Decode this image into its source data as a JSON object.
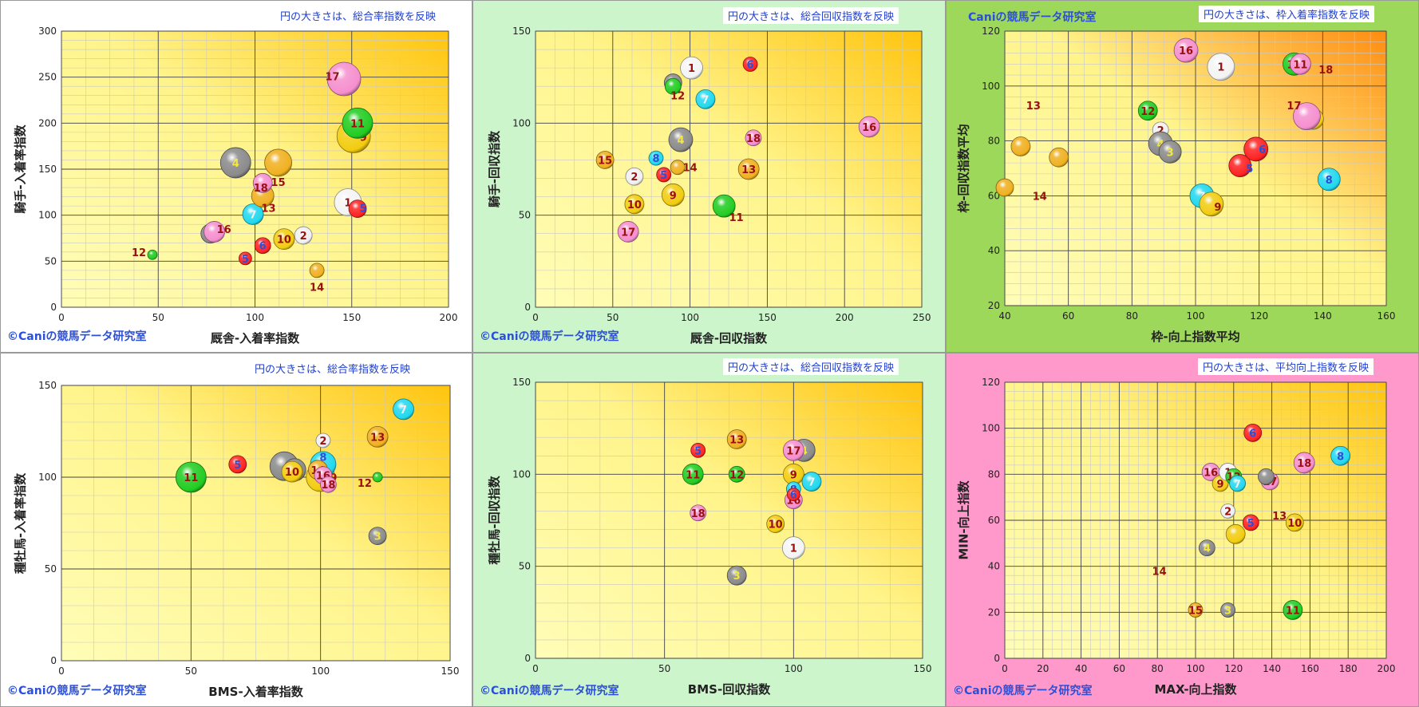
{
  "brand": "©Caniの競馬データ研究室",
  "brand_top": "Caniの競馬データ研究室",
  "colors": {
    "1": "#f4f4f4",
    "2": "#f0f0f0",
    "3": "#8a8a8a",
    "4": "#8a8a8a",
    "5": "#ff2222",
    "6": "#ff2222",
    "7": "#22d8ee",
    "8": "#22d8ee",
    "9": "#f2cc10",
    "10": "#f2cc10",
    "11": "#22cc22",
    "12": "#22cc22",
    "13": "#f0b020",
    "14": "#f0b020",
    "15": "#f0b020",
    "16": "#f58fcf",
    "17": "#f58fcf",
    "18": "#f58fcf"
  },
  "label_colors": {
    "1": "#9a1010",
    "2": "#9a1010",
    "3": "#f2e840",
    "4": "#f2e840",
    "5": "#2b4fd6",
    "6": "#2b4fd6",
    "7": "#f2f2f2",
    "8": "#2b4fd6",
    "9": "#9a1010",
    "10": "#9a1010",
    "11": "#9a1010",
    "12": "#9a1010",
    "13": "#9a1010",
    "14": "#9a1010",
    "15": "#9a1010",
    "16": "#9a1010",
    "17": "#9a1010",
    "18": "#9a1010"
  },
  "chart_data": [
    {
      "type": "scatter",
      "bg": "#ffffff",
      "note": "円の大きさは、総合率指数を反映",
      "corner": "bl",
      "xlabel": "厩舎-入着率指数",
      "ylabel": "騎手-入着率指数",
      "xlim": [
        0,
        200
      ],
      "ylim": [
        0,
        300
      ],
      "xticks": [
        0,
        50,
        100,
        150,
        200
      ],
      "yticks": [
        0,
        50,
        100,
        150,
        200,
        250,
        300
      ],
      "points": [
        {
          "id": "12",
          "x": 47,
          "y": 57,
          "r": 6,
          "lx": 40,
          "ly": 60
        },
        {
          "id": "3",
          "x": 77,
          "y": 80,
          "r": 12
        },
        {
          "id": "16",
          "x": 79,
          "y": 82,
          "r": 13,
          "lx": 84,
          "ly": 85
        },
        {
          "id": "4",
          "x": 90,
          "y": 157,
          "r": 19
        },
        {
          "id": "5",
          "x": 95,
          "y": 53,
          "r": 8
        },
        {
          "id": "7",
          "x": 99,
          "y": 101,
          "r": 13
        },
        {
          "id": "13",
          "x": 104,
          "y": 121,
          "r": 14,
          "lx": 107,
          "ly": 108
        },
        {
          "id": "18",
          "x": 104,
          "y": 135,
          "r": 12,
          "lx": 103,
          "ly": 130
        },
        {
          "id": "6",
          "x": 104,
          "y": 67,
          "r": 10
        },
        {
          "id": "15",
          "x": 112,
          "y": 157,
          "r": 17,
          "lx": 112,
          "ly": 136
        },
        {
          "id": "10",
          "x": 115,
          "y": 74,
          "r": 13
        },
        {
          "id": "2",
          "x": 125,
          "y": 78,
          "r": 11
        },
        {
          "id": "14",
          "x": 132,
          "y": 40,
          "r": 9,
          "lx": 132,
          "ly": 22
        },
        {
          "id": "17",
          "x": 146,
          "y": 248,
          "r": 21,
          "lx": 140,
          "ly": 251
        },
        {
          "id": "1",
          "x": 148,
          "y": 114,
          "r": 17
        },
        {
          "id": "9",
          "x": 151,
          "y": 186,
          "r": 21,
          "lx": 156,
          "ly": 185
        },
        {
          "id": "11",
          "x": 153,
          "y": 200,
          "r": 19
        },
        {
          "id": "5b",
          "lbl": "5",
          "col": "5",
          "x": 153,
          "y": 107,
          "r": 11,
          "lx": 156,
          "ly": 108
        }
      ]
    },
    {
      "type": "scatter",
      "bg": "#ccf5cc",
      "note": "円の大きさは、総合回収指数を反映",
      "corner": "bl",
      "xlabel": "厩舎-回収指数",
      "ylabel": "騎手-回収指数",
      "xlim": [
        0,
        250
      ],
      "ylim": [
        0,
        150
      ],
      "xticks": [
        0,
        50,
        100,
        150,
        200,
        250
      ],
      "yticks": [
        0,
        50,
        100,
        150
      ],
      "points": [
        {
          "id": "15",
          "x": 45,
          "y": 80,
          "r": 11
        },
        {
          "id": "17",
          "x": 60,
          "y": 41,
          "r": 13
        },
        {
          "id": "2",
          "x": 64,
          "y": 71,
          "r": 11
        },
        {
          "id": "10",
          "x": 64,
          "y": 56,
          "r": 12
        },
        {
          "id": "8",
          "x": 78,
          "y": 81,
          "r": 9
        },
        {
          "id": "5",
          "x": 83,
          "y": 72,
          "r": 9
        },
        {
          "id": "9",
          "x": 89,
          "y": 61,
          "r": 14
        },
        {
          "id": "3",
          "x": 89,
          "y": 122,
          "r": 11
        },
        {
          "id": "12",
          "x": 89,
          "y": 120,
          "r": 10,
          "lx": 92,
          "ly": 115
        },
        {
          "id": "14",
          "x": 92,
          "y": 76,
          "r": 9,
          "lx": 100,
          "ly": 76
        },
        {
          "id": "4",
          "x": 94,
          "y": 91,
          "r": 15
        },
        {
          "id": "1",
          "x": 101,
          "y": 130,
          "r": 14
        },
        {
          "id": "7",
          "x": 110,
          "y": 113,
          "r": 12
        },
        {
          "id": "11",
          "x": 122,
          "y": 55,
          "r": 14,
          "lx": 130,
          "ly": 49
        },
        {
          "id": "13",
          "x": 138,
          "y": 75,
          "r": 13
        },
        {
          "id": "6",
          "x": 139,
          "y": 132,
          "r": 9
        },
        {
          "id": "18",
          "x": 141,
          "y": 92,
          "r": 10
        },
        {
          "id": "16",
          "x": 216,
          "y": 98,
          "r": 13
        }
      ]
    },
    {
      "type": "scatter",
      "bg": "#9ed85a",
      "note": "円の大きさは、枠入着率指数を反映",
      "corner": "tl",
      "xlabel": "枠-向上指数平均",
      "ylabel": "枠-回収指数平均",
      "xlim": [
        40,
        160
      ],
      "ylim": [
        20,
        120
      ],
      "xticks": [
        40,
        60,
        80,
        100,
        120,
        140,
        160
      ],
      "yticks": [
        20,
        40,
        60,
        80,
        100,
        120
      ],
      "points": [
        {
          "id": "a1",
          "lbl": "",
          "col": "13",
          "x": 40,
          "y": 63,
          "r": 11
        },
        {
          "id": "a2",
          "lbl": "",
          "col": "14",
          "x": 45,
          "y": 78,
          "r": 12
        },
        {
          "id": "a3",
          "lbl": "",
          "col": "15",
          "x": 57,
          "y": 74,
          "r": 12
        },
        {
          "id": "13",
          "lbl": "13",
          "x": 49,
          "y": 93,
          "r": 0
        },
        {
          "id": "14",
          "lbl": "14",
          "x": 51,
          "y": 60,
          "r": 0
        },
        {
          "id": "12",
          "x": 85,
          "y": 91,
          "r": 12
        },
        {
          "id": "2",
          "x": 89,
          "y": 84,
          "r": 10
        },
        {
          "id": "4",
          "x": 89,
          "y": 79,
          "r": 15
        },
        {
          "id": "3",
          "x": 92,
          "y": 76,
          "r": 14
        },
        {
          "id": "16",
          "x": 97,
          "y": 113,
          "r": 15
        },
        {
          "id": "7",
          "x": 102,
          "y": 60,
          "r": 15
        },
        {
          "id": "9",
          "x": 105,
          "y": 57,
          "r": 15,
          "lx": 107,
          "ly": 56
        },
        {
          "id": "1",
          "x": 108,
          "y": 107,
          "r": 17
        },
        {
          "id": "5",
          "x": 114,
          "y": 71,
          "r": 14,
          "lx": 117,
          "ly": 70
        },
        {
          "id": "6",
          "x": 119,
          "y": 77,
          "r": 15,
          "lx": 121,
          "ly": 77
        },
        {
          "id": "11",
          "x": 131,
          "y": 108,
          "r": 14
        },
        {
          "id": "11b",
          "lbl": "11",
          "col": "17",
          "x": 133,
          "y": 108,
          "r": 13
        },
        {
          "id": "18",
          "lbl": "18",
          "x": 141,
          "y": 106,
          "r": 0
        },
        {
          "id": "10",
          "x": 137,
          "y": 88,
          "r": 13
        },
        {
          "id": "17",
          "x": 135,
          "y": 89,
          "r": 17,
          "lx": 131,
          "ly": 93
        },
        {
          "id": "8",
          "x": 142,
          "y": 66,
          "r": 14
        }
      ]
    },
    {
      "type": "scatter",
      "bg": "#ffffff",
      "note": "円の大きさは、総合率指数を反映",
      "corner": "bl",
      "xlabel": "BMS-入着率指数",
      "ylabel": "種牡馬-入着率指数",
      "xlim": [
        0,
        150
      ],
      "ylim": [
        0,
        150
      ],
      "xticks": [
        0,
        50,
        100,
        150
      ],
      "yticks": [
        0,
        50,
        100,
        150
      ],
      "points": [
        {
          "id": "11",
          "x": 50,
          "y": 100,
          "r": 19
        },
        {
          "id": "5",
          "x": 68,
          "y": 107,
          "r": 11
        },
        {
          "id": "3b",
          "lbl": "",
          "col": "3",
          "x": 86,
          "y": 106,
          "r": 18
        },
        {
          "id": "4",
          "x": 90,
          "y": 104,
          "r": 14,
          "lx": 90,
          "ly": 104
        },
        {
          "id": "10",
          "x": 89,
          "y": 103,
          "r": 13
        },
        {
          "id": "9",
          "x": 100,
          "y": 100,
          "r": 18,
          "lx": 105,
          "ly": 100
        },
        {
          "id": "2",
          "x": 101,
          "y": 120,
          "r": 9
        },
        {
          "id": "8",
          "x": 101,
          "y": 107,
          "r": 16,
          "lx": 101,
          "ly": 111
        },
        {
          "id": "14",
          "x": 99,
          "y": 104,
          "r": 12
        },
        {
          "id": "16",
          "x": 101,
          "y": 101,
          "r": 11
        },
        {
          "id": "18",
          "x": 103,
          "y": 96,
          "r": 10
        },
        {
          "id": "12",
          "x": 122,
          "y": 100,
          "r": 6,
          "lx": 117,
          "ly": 97
        },
        {
          "id": "13",
          "x": 122,
          "y": 122,
          "r": 13
        },
        {
          "id": "3",
          "x": 122,
          "y": 68,
          "r": 11
        },
        {
          "id": "7",
          "x": 132,
          "y": 137,
          "r": 13
        }
      ]
    },
    {
      "type": "scatter",
      "bg": "#ccf5cc",
      "note": "円の大きさは、総合回収指数を反映",
      "corner": "bl",
      "xlabel": "BMS-回収指数",
      "ylabel": "種牡馬-回収指数",
      "xlim": [
        0,
        150
      ],
      "ylim": [
        0,
        150
      ],
      "xticks": [
        0,
        50,
        100,
        150
      ],
      "yticks": [
        0,
        50,
        100,
        150
      ],
      "points": [
        {
          "id": "11",
          "x": 61,
          "y": 100,
          "r": 13
        },
        {
          "id": "5",
          "x": 63,
          "y": 113,
          "r": 9
        },
        {
          "id": "18",
          "x": 63,
          "y": 79,
          "r": 10
        },
        {
          "id": "13",
          "x": 78,
          "y": 119,
          "r": 12
        },
        {
          "id": "12",
          "x": 78,
          "y": 100,
          "r": 10
        },
        {
          "id": "3",
          "x": 78,
          "y": 45,
          "r": 12
        },
        {
          "id": "10",
          "x": 93,
          "y": 73,
          "r": 11
        },
        {
          "id": "4",
          "x": 104,
          "y": 113,
          "r": 14
        },
        {
          "id": "17",
          "x": 100,
          "y": 113,
          "r": 13
        },
        {
          "id": "1",
          "x": 100,
          "y": 60,
          "r": 14
        },
        {
          "id": "9",
          "x": 100,
          "y": 100,
          "r": 13
        },
        {
          "id": "16",
          "x": 100,
          "y": 86,
          "r": 11
        },
        {
          "id": "8",
          "x": 100,
          "y": 92,
          "r": 9
        },
        {
          "id": "6",
          "x": 100,
          "y": 89,
          "r": 8
        },
        {
          "id": "7",
          "x": 107,
          "y": 96,
          "r": 12
        }
      ]
    },
    {
      "type": "scatter",
      "bg": "#ff99cc",
      "note": "円の大きさは、平均向上指数を反映",
      "corner": "bl",
      "xlabel": "MAX-向上指数",
      "ylabel": "MIN-向上指数",
      "xlim": [
        0,
        200
      ],
      "ylim": [
        0,
        120
      ],
      "xticks": [
        0,
        20,
        40,
        60,
        80,
        100,
        120,
        140,
        160,
        180,
        200
      ],
      "yticks": [
        0,
        20,
        40,
        60,
        80,
        100,
        120
      ],
      "points": [
        {
          "id": "15",
          "x": 100,
          "y": 21,
          "r": 9
        },
        {
          "id": "3",
          "x": 117,
          "y": 21,
          "r": 9
        },
        {
          "id": "11",
          "x": 151,
          "y": 21,
          "r": 12
        },
        {
          "id": "14",
          "lbl": "14",
          "x": 81,
          "y": 38,
          "r": 0
        },
        {
          "id": "4",
          "x": 106,
          "y": 48,
          "r": 10
        },
        {
          "id": "12b",
          "lbl": "",
          "col": "9",
          "x": 121,
          "y": 54,
          "r": 12
        },
        {
          "id": "16",
          "x": 108,
          "y": 81,
          "r": 11
        },
        {
          "id": "9",
          "x": 113,
          "y": 76,
          "r": 10
        },
        {
          "id": "2",
          "x": 117,
          "y": 64,
          "r": 9
        },
        {
          "id": "1",
          "x": 117,
          "y": 81,
          "r": 11
        },
        {
          "id": "12",
          "x": 120,
          "y": 79,
          "r": 10
        },
        {
          "id": "7",
          "x": 122,
          "y": 76,
          "r": 10
        },
        {
          "id": "5",
          "x": 129,
          "y": 59,
          "r": 10
        },
        {
          "id": "6",
          "x": 130,
          "y": 98,
          "r": 11
        },
        {
          "id": "13",
          "lbl": "13",
          "x": 144,
          "y": 62,
          "r": 0
        },
        {
          "id": "17",
          "x": 139,
          "y": 77,
          "r": 11
        },
        {
          "id": "10",
          "x": 152,
          "y": 59,
          "r": 11
        },
        {
          "id": "3b",
          "lbl": "",
          "col": "3",
          "x": 137,
          "y": 79,
          "r": 10
        },
        {
          "id": "18",
          "x": 157,
          "y": 85,
          "r": 13
        },
        {
          "id": "8",
          "x": 176,
          "y": 88,
          "r": 12
        }
      ]
    }
  ]
}
